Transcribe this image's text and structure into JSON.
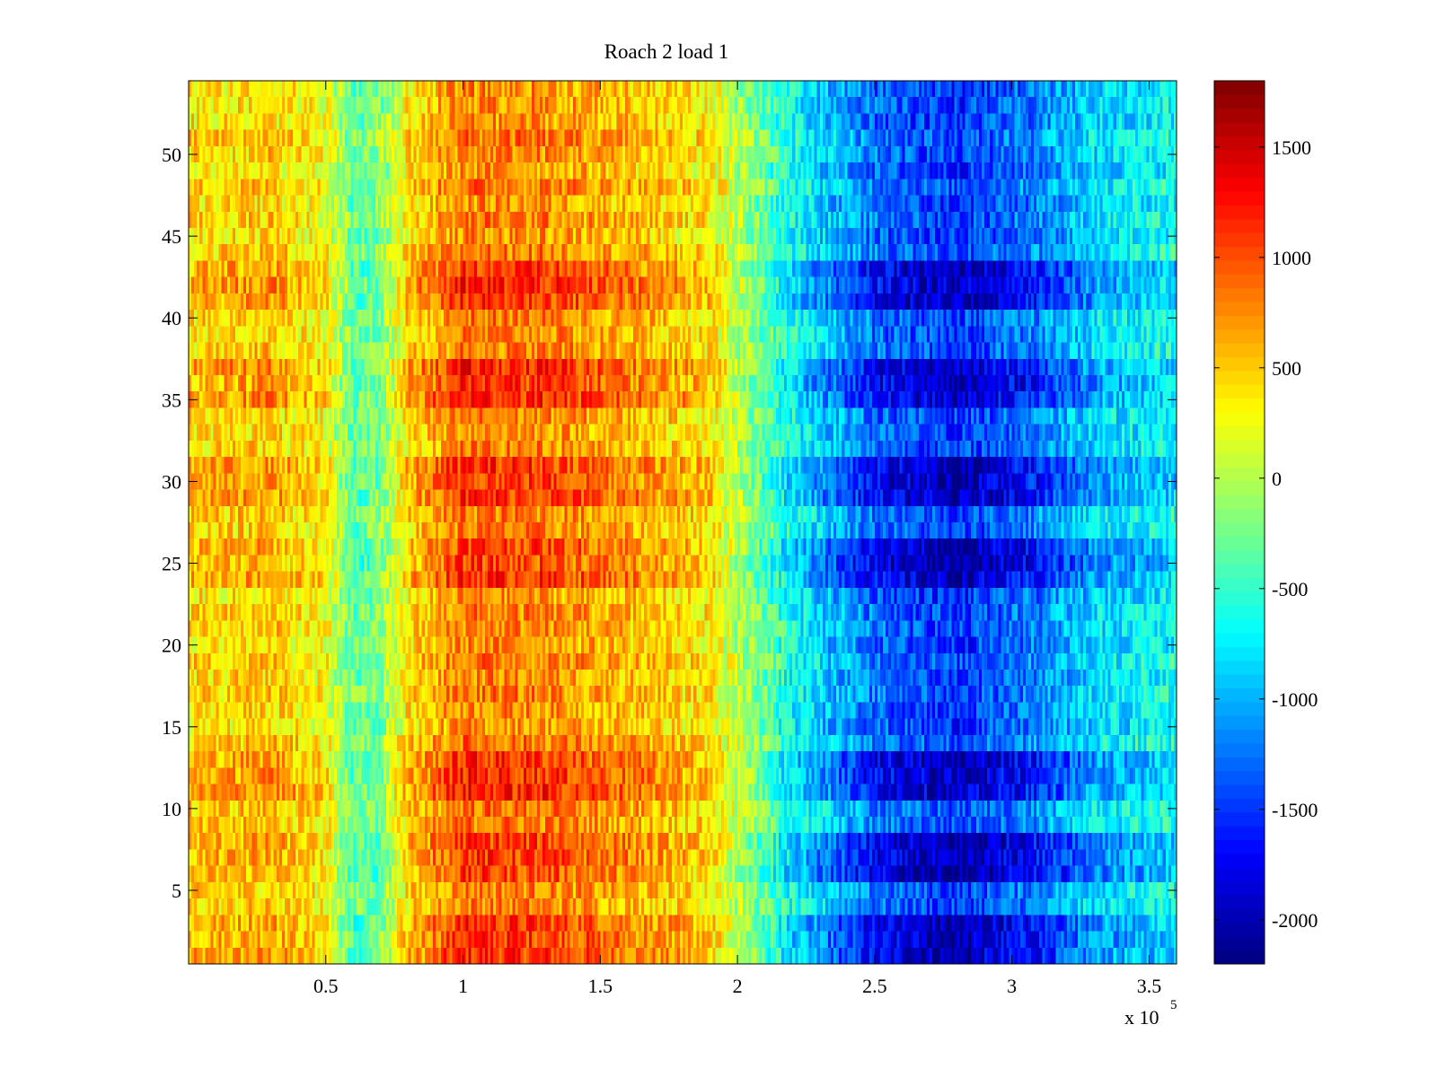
{
  "chart_data": {
    "type": "heatmap",
    "title": "Roach 2 load 1",
    "xlabel": "",
    "ylabel": "",
    "x_multiplier_label": "x 10",
    "x_multiplier_exponent": "5",
    "xlim": [
      0,
      3.6
    ],
    "ylim": [
      0.5,
      54.5
    ],
    "x_ticks": [
      0.5,
      1,
      1.5,
      2,
      2.5,
      3,
      3.5
    ],
    "x_tick_labels": [
      "0.5",
      "1",
      "1.5",
      "2",
      "2.5",
      "3",
      "3.5"
    ],
    "y_ticks": [
      5,
      10,
      15,
      20,
      25,
      30,
      35,
      40,
      45,
      50
    ],
    "y_tick_labels": [
      "5",
      "10",
      "15",
      "20",
      "25",
      "30",
      "35",
      "40",
      "45",
      "50"
    ],
    "colorbar": {
      "colormap": "jet",
      "clim": [
        -2200,
        1800
      ],
      "ticks": [
        -2000,
        -1500,
        -1000,
        -500,
        0,
        500,
        1000,
        1500
      ],
      "tick_labels": [
        "-2000",
        "-1500",
        "-1000",
        "-500",
        "0",
        "500",
        "1000",
        "1500"
      ]
    },
    "rows": 54,
    "profile": {
      "description_values_by_x": [
        {
          "x": 0.0,
          "value": 450
        },
        {
          "x": 0.3,
          "value": 550
        },
        {
          "x": 0.5,
          "value": 300
        },
        {
          "x": 0.6,
          "value": -350
        },
        {
          "x": 0.7,
          "value": -200
        },
        {
          "x": 0.8,
          "value": 450
        },
        {
          "x": 1.0,
          "value": 900
        },
        {
          "x": 1.3,
          "value": 850
        },
        {
          "x": 1.6,
          "value": 650
        },
        {
          "x": 1.9,
          "value": 400
        },
        {
          "x": 2.0,
          "value": 0
        },
        {
          "x": 2.2,
          "value": -700
        },
        {
          "x": 2.5,
          "value": -1400
        },
        {
          "x": 2.8,
          "value": -1650
        },
        {
          "x": 3.1,
          "value": -1300
        },
        {
          "x": 3.3,
          "value": -900
        },
        {
          "x": 3.6,
          "value": -700
        }
      ],
      "strong_rows": [
        1,
        2,
        3,
        6,
        7,
        8,
        11,
        12,
        13,
        24,
        25,
        26,
        29,
        30,
        31,
        35,
        36,
        37,
        41,
        42,
        43
      ]
    }
  },
  "colors": {
    "axis": "#000000",
    "background": "#ffffff"
  }
}
